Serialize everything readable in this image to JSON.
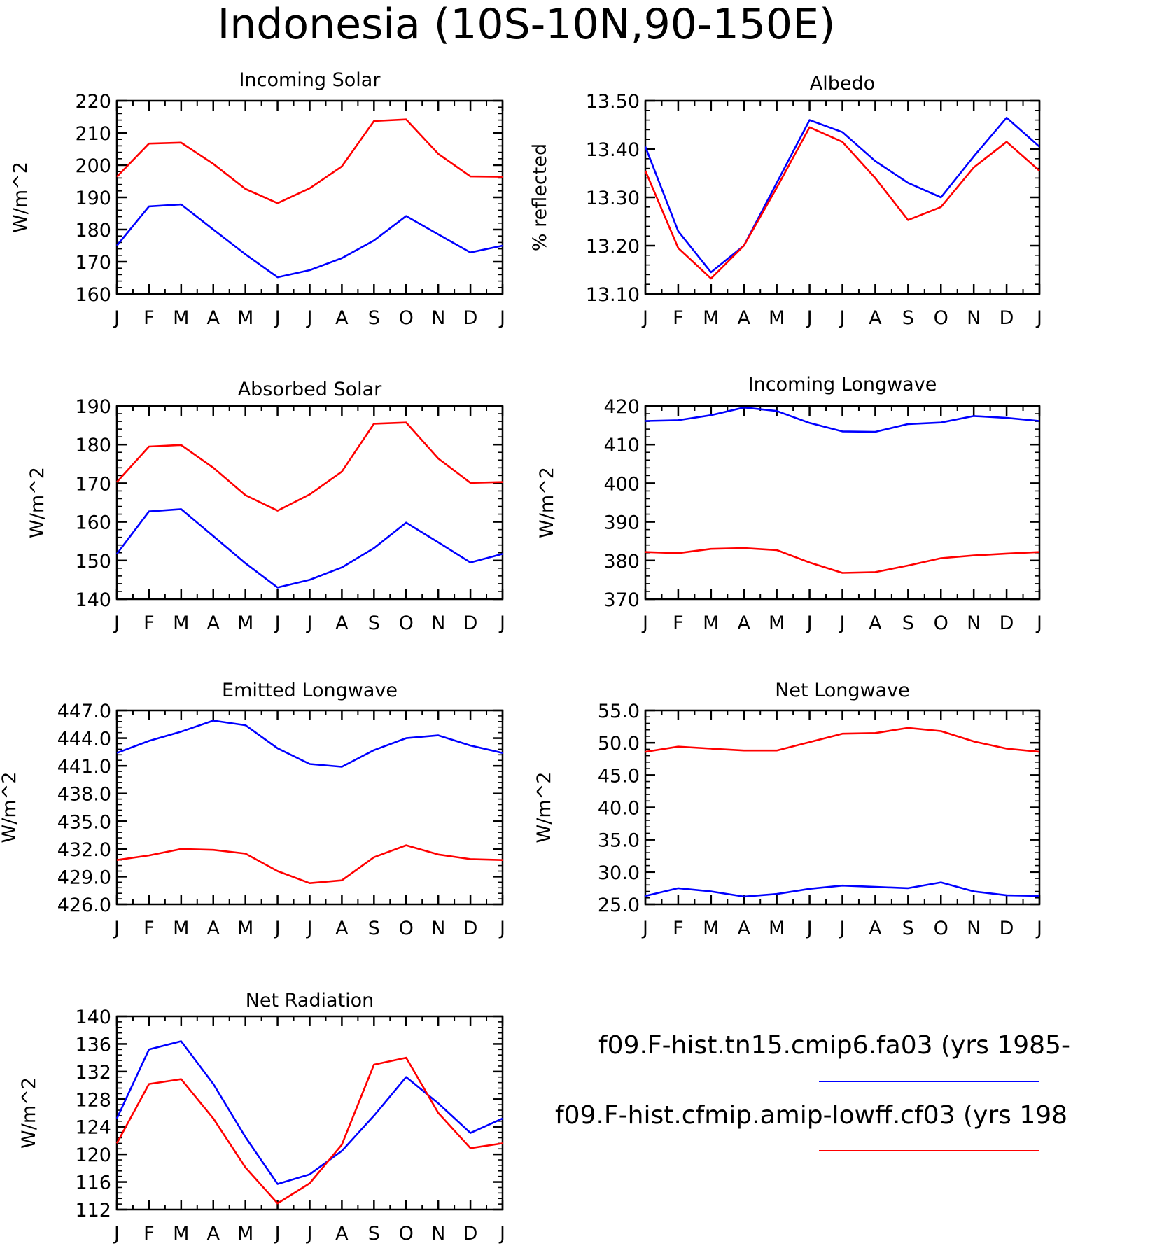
{
  "figure": {
    "title": "Indonesia (10S-10N,90-150E)",
    "series_colors": [
      "#0000ff",
      "#ff0000"
    ]
  },
  "legend": {
    "entries": [
      {
        "label": "f09.F-hist.tn15.cmip6.fa03 (yrs 1985-",
        "color": "#0000ff"
      },
      {
        "label": "f09.F-hist.cfmip.amip-lowff.cf03 (yrs 198",
        "color": "#ff0000"
      }
    ]
  },
  "chart_data": [
    {
      "type": "line",
      "title": "Incoming Solar",
      "ylabel": "W/m^2",
      "categories": [
        "J",
        "F",
        "M",
        "A",
        "M",
        "J",
        "J",
        "A",
        "S",
        "O",
        "N",
        "D",
        "J"
      ],
      "ylim": [
        160,
        220
      ],
      "yticks": [
        "160",
        "170",
        "180",
        "190",
        "200",
        "210",
        "220"
      ],
      "series": [
        {
          "values": [
            175.0,
            187.2,
            187.8,
            180.0,
            172.3,
            165.2,
            167.4,
            171.1,
            176.6,
            184.2,
            178.5,
            172.9,
            175.0
          ],
          "color": "#0000ff"
        },
        {
          "values": [
            196.4,
            206.7,
            207.0,
            200.4,
            192.6,
            188.2,
            192.8,
            199.6,
            213.7,
            214.2,
            203.5,
            196.5,
            196.4
          ],
          "color": "#ff0000"
        }
      ]
    },
    {
      "type": "line",
      "title": "Albedo",
      "ylabel": "% reflected",
      "categories": [
        "J",
        "F",
        "M",
        "A",
        "M",
        "J",
        "J",
        "A",
        "S",
        "O",
        "N",
        "D",
        "J"
      ],
      "ylim": [
        13.1,
        13.5
      ],
      "yticks": [
        "13.10",
        "13.20",
        "13.30",
        "13.40",
        "13.50"
      ],
      "series": [
        {
          "values": [
            13.405,
            13.23,
            13.145,
            13.2,
            13.33,
            13.46,
            13.435,
            13.375,
            13.33,
            13.3,
            13.385,
            13.465,
            13.405
          ],
          "color": "#0000ff"
        },
        {
          "values": [
            13.355,
            13.195,
            13.132,
            13.2,
            13.32,
            13.445,
            13.415,
            13.34,
            13.253,
            13.28,
            13.362,
            13.415,
            13.355
          ],
          "color": "#ff0000"
        }
      ]
    },
    {
      "type": "line",
      "title": "Absorbed Solar",
      "ylabel": "W/m^2",
      "categories": [
        "J",
        "F",
        "M",
        "A",
        "M",
        "J",
        "J",
        "A",
        "S",
        "O",
        "N",
        "D",
        "J"
      ],
      "ylim": [
        140,
        190
      ],
      "yticks": [
        "140",
        "150",
        "160",
        "170",
        "180",
        "190"
      ],
      "series": [
        {
          "values": [
            151.7,
            162.7,
            163.3,
            156.3,
            149.3,
            143.0,
            145.0,
            148.2,
            153.2,
            159.8,
            154.7,
            149.5,
            151.7
          ],
          "color": "#0000ff"
        },
        {
          "values": [
            170.3,
            179.5,
            179.9,
            174.0,
            166.9,
            162.9,
            167.1,
            173.0,
            185.4,
            185.7,
            176.4,
            170.1,
            170.3
          ],
          "color": "#ff0000"
        }
      ]
    },
    {
      "type": "line",
      "title": "Incoming Longwave",
      "ylabel": "W/m^2",
      "categories": [
        "J",
        "F",
        "M",
        "A",
        "M",
        "J",
        "J",
        "A",
        "S",
        "O",
        "N",
        "D",
        "J"
      ],
      "ylim": [
        370,
        420
      ],
      "yticks": [
        "370",
        "380",
        "390",
        "400",
        "410",
        "420"
      ],
      "series": [
        {
          "values": [
            416.1,
            416.3,
            417.6,
            419.6,
            418.7,
            415.6,
            413.4,
            413.3,
            415.3,
            415.7,
            417.4,
            416.9,
            416.1
          ],
          "color": "#0000ff"
        },
        {
          "values": [
            382.2,
            381.9,
            383.0,
            383.2,
            382.7,
            379.5,
            376.8,
            377.0,
            378.7,
            380.6,
            381.3,
            381.8,
            382.2
          ],
          "color": "#ff0000"
        }
      ]
    },
    {
      "type": "line",
      "title": "Emitted Longwave",
      "ylabel": "W/m^2",
      "categories": [
        "J",
        "F",
        "M",
        "A",
        "M",
        "J",
        "J",
        "A",
        "S",
        "O",
        "N",
        "D",
        "J"
      ],
      "ylim": [
        426.0,
        447.0
      ],
      "yticks": [
        "426.0",
        "429.0",
        "432.0",
        "435.0",
        "438.0",
        "441.0",
        "444.0",
        "447.0"
      ],
      "series": [
        {
          "values": [
            442.4,
            443.7,
            444.7,
            445.9,
            445.4,
            442.9,
            441.2,
            440.9,
            442.7,
            444.0,
            444.3,
            443.2,
            442.4
          ],
          "color": "#0000ff"
        },
        {
          "values": [
            430.8,
            431.3,
            432.0,
            431.9,
            431.5,
            429.6,
            428.3,
            428.6,
            431.1,
            432.4,
            431.4,
            430.9,
            430.8
          ],
          "color": "#ff0000"
        }
      ]
    },
    {
      "type": "line",
      "title": "Net Longwave",
      "ylabel": "W/m^2",
      "categories": [
        "J",
        "F",
        "M",
        "A",
        "M",
        "J",
        "J",
        "A",
        "S",
        "O",
        "N",
        "D",
        "J"
      ],
      "ylim": [
        25.0,
        55.0
      ],
      "yticks": [
        "25.0",
        "30.0",
        "35.0",
        "40.0",
        "45.0",
        "50.0",
        "55.0"
      ],
      "series": [
        {
          "values": [
            26.3,
            27.5,
            27.0,
            26.2,
            26.6,
            27.4,
            27.9,
            27.7,
            27.5,
            28.4,
            27.0,
            26.4,
            26.3
          ],
          "color": "#0000ff"
        },
        {
          "values": [
            48.6,
            49.4,
            49.1,
            48.8,
            48.8,
            50.1,
            51.4,
            51.5,
            52.3,
            51.8,
            50.2,
            49.1,
            48.6
          ],
          "color": "#ff0000"
        }
      ]
    },
    {
      "type": "line",
      "title": "Net Radiation",
      "ylabel": "W/m^2",
      "categories": [
        "J",
        "F",
        "M",
        "A",
        "M",
        "J",
        "J",
        "A",
        "S",
        "O",
        "N",
        "D",
        "J"
      ],
      "ylim": [
        112,
        140
      ],
      "yticks": [
        "112",
        "116",
        "120",
        "124",
        "128",
        "132",
        "136",
        "140"
      ],
      "series": [
        {
          "values": [
            125.2,
            135.2,
            136.4,
            130.2,
            122.5,
            115.7,
            117.1,
            120.5,
            125.6,
            131.2,
            127.4,
            123.1,
            125.2
          ],
          "color": "#0000ff"
        },
        {
          "values": [
            121.6,
            130.2,
            130.9,
            125.2,
            118.1,
            112.9,
            115.8,
            121.4,
            133.0,
            134.0,
            126.0,
            120.9,
            121.6
          ],
          "color": "#ff0000"
        }
      ]
    }
  ]
}
